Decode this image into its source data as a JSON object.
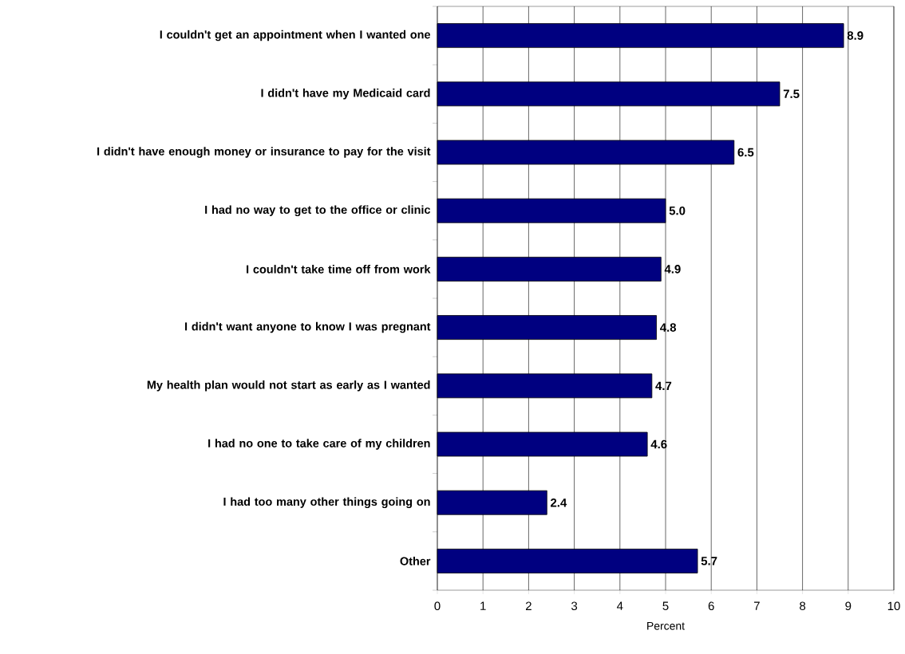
{
  "chart_data": {
    "type": "bar",
    "orientation": "horizontal",
    "categories": [
      "I couldn't get an appointment when I wanted one",
      "I didn't have my Medicaid card",
      "I didn't have enough money or insurance to pay for the visit",
      "I had no way to get to the office or clinic",
      "I couldn't take time off from work",
      "I didn't want anyone to know I was pregnant",
      "My health plan would not start as early as I wanted",
      "I had no one to take care of my children",
      "I had too many other things going on",
      "Other"
    ],
    "values": [
      8.9,
      7.5,
      6.5,
      5.0,
      4.9,
      4.8,
      4.7,
      4.6,
      2.4,
      5.7
    ],
    "value_labels": [
      "8.9",
      "7.5",
      "6.5",
      "5.0",
      "4.9",
      "4.8",
      "4.7",
      "4.6",
      "2.4",
      "5.7"
    ],
    "color": "#000080",
    "xlabel": "Percent",
    "xlim": [
      0,
      10
    ],
    "xticks": [
      0,
      1,
      2,
      3,
      4,
      5,
      6,
      7,
      8,
      9,
      10
    ],
    "grid": "x"
  }
}
